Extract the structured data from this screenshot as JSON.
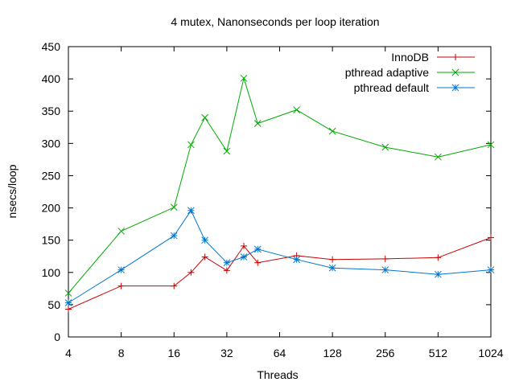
{
  "chart_data": {
    "type": "line",
    "title": "4 mutex, Nanonseconds per loop iteration",
    "xlabel": "Threads",
    "ylabel": "nsecs/loop",
    "xscale": "log2",
    "xlim": [
      4,
      1024
    ],
    "ylim": [
      0,
      450
    ],
    "xticks": [
      4,
      8,
      16,
      32,
      64,
      128,
      256,
      512,
      1024
    ],
    "xtick_labels": [
      "4",
      "8",
      "16",
      "32",
      "64",
      "128",
      "256",
      "512",
      "1024"
    ],
    "yticks": [
      0,
      50,
      100,
      150,
      200,
      250,
      300,
      350,
      400,
      450
    ],
    "ytick_labels": [
      "0",
      "50",
      "100",
      "150",
      "200",
      "250",
      "300",
      "350",
      "400",
      "450"
    ],
    "grid": false,
    "legend_position": "top-right",
    "series": [
      {
        "name": "InnoDB",
        "color": "#cc0000",
        "marker": "plus",
        "x": [
          4,
          8,
          16,
          20,
          24,
          32,
          40,
          48,
          80,
          128,
          256,
          512,
          1024
        ],
        "y": [
          43,
          79,
          79,
          100,
          124,
          103,
          141,
          115,
          126,
          120,
          121,
          123,
          154
        ]
      },
      {
        "name": "pthread adaptive",
        "color": "#00aa00",
        "marker": "cross",
        "x": [
          4,
          8,
          16,
          20,
          24,
          32,
          40,
          48,
          80,
          128,
          256,
          512,
          1024
        ],
        "y": [
          68,
          164,
          201,
          298,
          340,
          288,
          401,
          331,
          352,
          319,
          294,
          279,
          298
        ]
      },
      {
        "name": "pthread default",
        "color": "#0077cc",
        "marker": "star",
        "x": [
          4,
          8,
          16,
          20,
          24,
          32,
          40,
          48,
          80,
          128,
          256,
          512,
          1024
        ],
        "y": [
          53,
          104,
          157,
          196,
          150,
          115,
          124,
          136,
          120,
          107,
          104,
          97,
          104
        ]
      }
    ]
  }
}
